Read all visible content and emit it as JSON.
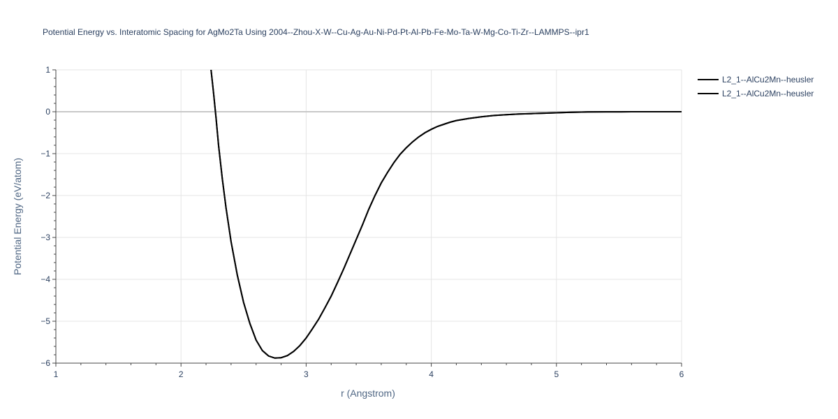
{
  "chart_data": {
    "type": "line",
    "title": "Potential Energy vs. Interatomic Spacing for AgMo2Ta Using 2004--Zhou-X-W--Cu-Ag-Au-Ni-Pd-Pt-Al-Pb-Fe-Mo-Ta-W-Mg-Co-Ti-Zr--LAMMPS--ipr1",
    "xlabel": "r (Angstrom)",
    "ylabel": "Potential Energy (eV/atom)",
    "xlim": [
      1,
      6
    ],
    "ylim": [
      -6,
      1
    ],
    "x_ticks": [
      1,
      2,
      3,
      4,
      5,
      6
    ],
    "y_ticks": [
      1,
      0,
      -1,
      -2,
      -3,
      -4,
      -5,
      -6
    ],
    "x_tick_labels": [
      "1",
      "2",
      "3",
      "4",
      "5",
      "6"
    ],
    "y_tick_labels": [
      "1",
      "0",
      "−1",
      "−2",
      "−3",
      "−4",
      "−5",
      "−6"
    ],
    "grid": true,
    "legend_position": "top-right",
    "series": [
      {
        "name": "L2_1--AlCu2Mn--heusler",
        "color": "#000000",
        "x": [
          2.24,
          2.26,
          2.28,
          2.3,
          2.33,
          2.36,
          2.4,
          2.45,
          2.5,
          2.55,
          2.6,
          2.65,
          2.7,
          2.75,
          2.8,
          2.85,
          2.9,
          2.95,
          3.0,
          3.05,
          3.1,
          3.15,
          3.2,
          3.25,
          3.3,
          3.35,
          3.4,
          3.45,
          3.5,
          3.55,
          3.6,
          3.65,
          3.7,
          3.75,
          3.8,
          3.85,
          3.9,
          3.95,
          4.0,
          4.05,
          4.1,
          4.15,
          4.2,
          4.3,
          4.4,
          4.5,
          4.6,
          4.7,
          4.8,
          4.9,
          5.0,
          5.1,
          5.2,
          5.25,
          5.4,
          5.6,
          5.8,
          6.0
        ],
        "y": [
          1.0,
          0.45,
          -0.15,
          -0.8,
          -1.6,
          -2.3,
          -3.1,
          -3.9,
          -4.55,
          -5.05,
          -5.45,
          -5.7,
          -5.83,
          -5.88,
          -5.87,
          -5.82,
          -5.72,
          -5.58,
          -5.4,
          -5.18,
          -4.95,
          -4.68,
          -4.4,
          -4.08,
          -3.75,
          -3.4,
          -3.05,
          -2.7,
          -2.33,
          -2.0,
          -1.7,
          -1.45,
          -1.22,
          -1.02,
          -0.86,
          -0.72,
          -0.6,
          -0.5,
          -0.42,
          -0.35,
          -0.3,
          -0.25,
          -0.21,
          -0.16,
          -0.12,
          -0.09,
          -0.07,
          -0.055,
          -0.045,
          -0.035,
          -0.025,
          -0.015,
          -0.008,
          -0.004,
          -0.002,
          -0.001,
          0.0,
          0.0
        ]
      },
      {
        "name": "L2_1--AlCu2Mn--heusler",
        "color": "#000000",
        "x": [
          2.24,
          2.26,
          2.28,
          2.3,
          2.33,
          2.36,
          2.4,
          2.45,
          2.5,
          2.55,
          2.6,
          2.65,
          2.7,
          2.75,
          2.8,
          2.85,
          2.9,
          2.95,
          3.0,
          3.05,
          3.1,
          3.15,
          3.2,
          3.25,
          3.3,
          3.35,
          3.4,
          3.45,
          3.5,
          3.55,
          3.6,
          3.65,
          3.7,
          3.75,
          3.8,
          3.85,
          3.9,
          3.95,
          4.0,
          4.05,
          4.1,
          4.15,
          4.2,
          4.3,
          4.4,
          4.5,
          4.6,
          4.7,
          4.8,
          4.9,
          5.0,
          5.1,
          5.2,
          5.25,
          5.4,
          5.6,
          5.8,
          6.0
        ],
        "y": [
          1.0,
          0.45,
          -0.15,
          -0.8,
          -1.6,
          -2.3,
          -3.1,
          -3.9,
          -4.55,
          -5.05,
          -5.45,
          -5.7,
          -5.83,
          -5.88,
          -5.87,
          -5.82,
          -5.72,
          -5.58,
          -5.4,
          -5.18,
          -4.95,
          -4.68,
          -4.4,
          -4.08,
          -3.75,
          -3.4,
          -3.05,
          -2.7,
          -2.33,
          -2.0,
          -1.7,
          -1.45,
          -1.22,
          -1.02,
          -0.86,
          -0.72,
          -0.6,
          -0.5,
          -0.42,
          -0.35,
          -0.3,
          -0.25,
          -0.21,
          -0.16,
          -0.12,
          -0.09,
          -0.07,
          -0.055,
          -0.045,
          -0.035,
          -0.025,
          -0.015,
          -0.008,
          -0.004,
          -0.002,
          -0.001,
          0.0,
          0.0
        ]
      }
    ]
  }
}
